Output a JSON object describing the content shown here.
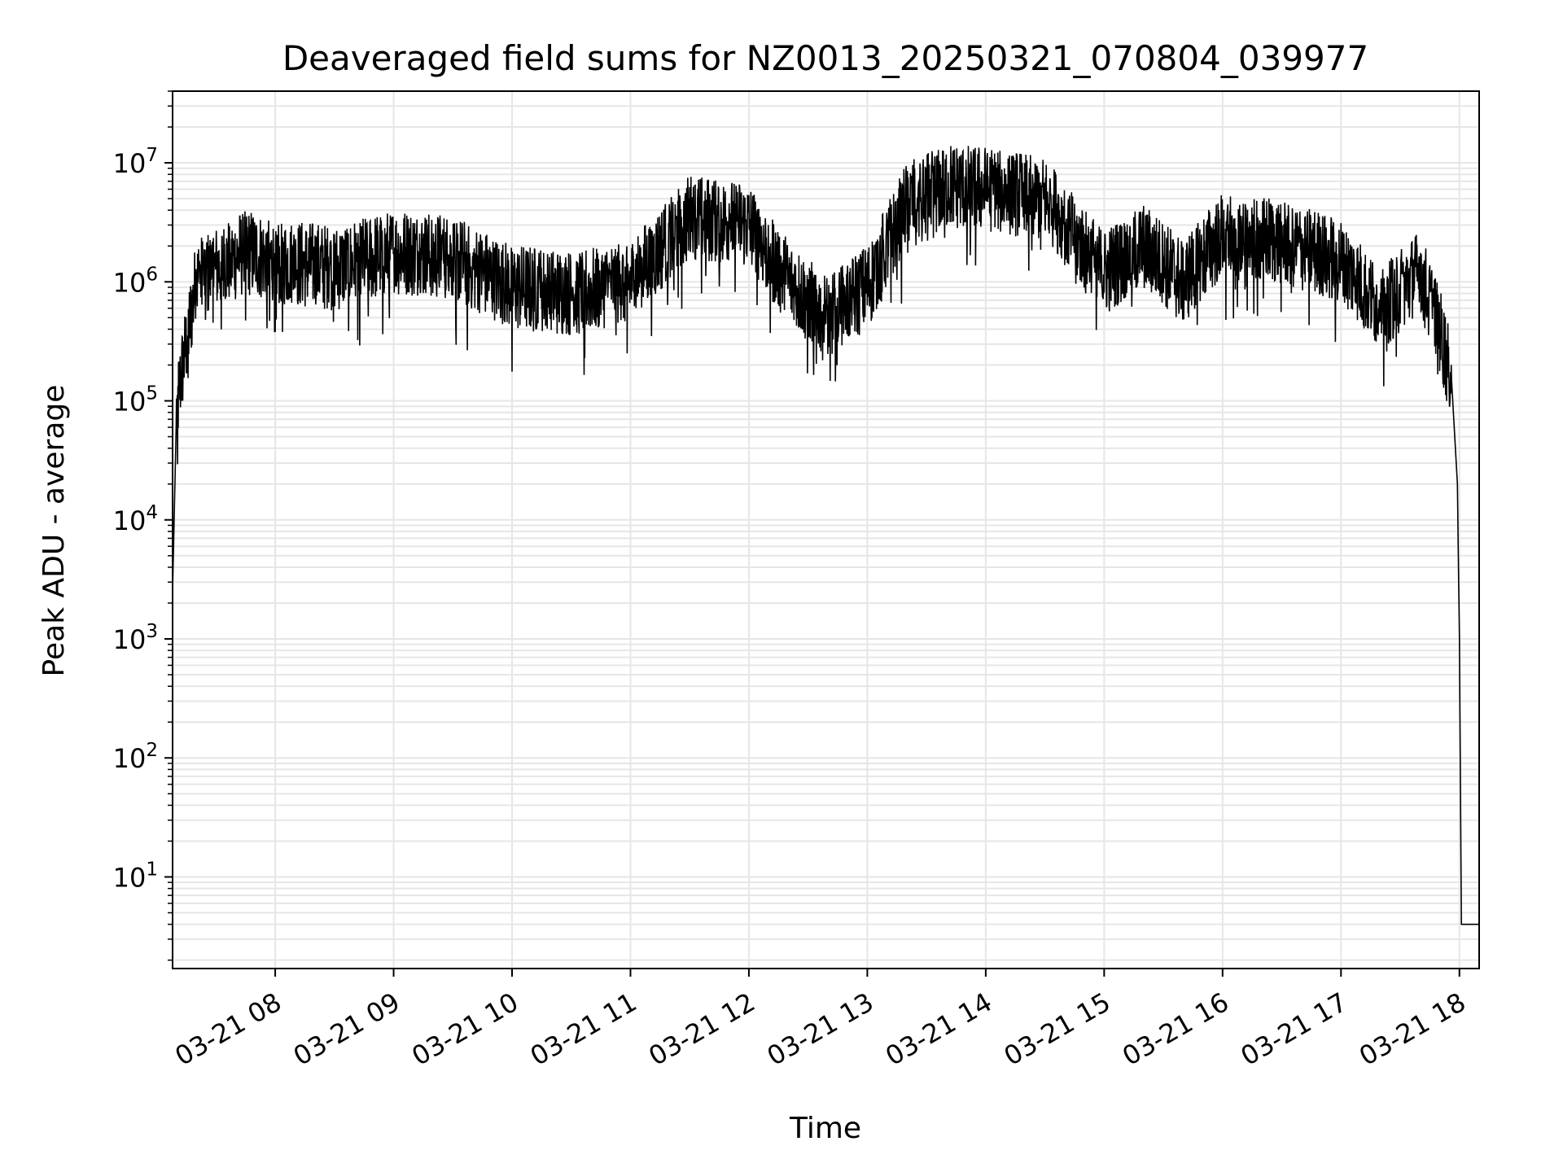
{
  "chart_data": {
    "type": "line",
    "title": "Deaveraged field sums for NZ0013_20250321_070804_039977",
    "xlabel": "Time",
    "ylabel": "Peak ADU - average",
    "yscale": "log",
    "ylim": [
      1.7,
      40000000
    ],
    "xlim": [
      "2025-03-21 07:08",
      "2025-03-21 18:10"
    ],
    "x_tick_labels": [
      "03-21 08",
      "03-21 09",
      "03-21 10",
      "03-21 11",
      "03-21 12",
      "03-21 13",
      "03-21 14",
      "03-21 15",
      "03-21 16",
      "03-21 17",
      "03-21 18"
    ],
    "y_tick_exponents": [
      1,
      2,
      3,
      4,
      5,
      6,
      7
    ],
    "grid": true,
    "line_color": "#000000",
    "grid_color": "#e6e6e6",
    "series": [
      {
        "x": [
          "2025-03-21 07:08",
          "2025-03-21 07:10",
          "2025-03-21 07:12",
          "2025-03-21 07:15",
          "2025-03-21 07:20",
          "2025-03-21 07:30",
          "2025-03-21 07:45",
          "2025-03-21 08:00",
          "2025-03-21 08:30",
          "2025-03-21 09:00",
          "2025-03-21 09:30",
          "2025-03-21 10:00",
          "2025-03-21 10:30",
          "2025-03-21 11:00",
          "2025-03-21 11:30",
          "2025-03-21 12:00",
          "2025-03-21 12:20",
          "2025-03-21 12:40",
          "2025-03-21 13:00",
          "2025-03-21 13:20",
          "2025-03-21 13:40",
          "2025-03-21 14:00",
          "2025-03-21 14:30",
          "2025-03-21 15:00",
          "2025-03-21 15:20",
          "2025-03-21 15:40",
          "2025-03-21 16:00",
          "2025-03-21 16:30",
          "2025-03-21 17:00",
          "2025-03-21 17:20",
          "2025-03-21 17:40",
          "2025-03-21 17:50",
          "2025-03-21 17:56",
          "2025-03-21 17:59",
          "2025-03-21 18:00",
          "2025-03-21 18:01",
          "2025-03-21 18:10"
        ],
        "y": [
          2500,
          80000,
          150000,
          300000,
          1000000,
          1300000,
          1800000,
          1500000,
          1300000,
          1800000,
          1600000,
          900000,
          800000,
          1000000,
          3500000,
          3000000,
          1000000,
          500000,
          900000,
          4500000,
          6500000,
          6000000,
          5000000,
          1200000,
          2000000,
          1000000,
          2500000,
          2200000,
          1500000,
          600000,
          1200000,
          400000,
          150000,
          20000,
          1000,
          4,
          4
        ]
      }
    ]
  }
}
